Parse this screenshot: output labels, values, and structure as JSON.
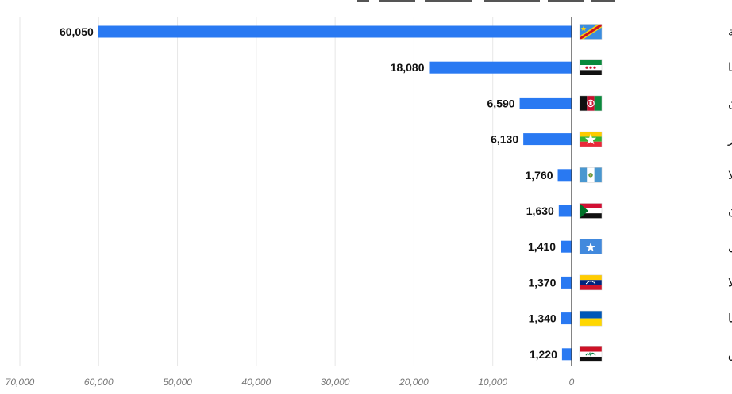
{
  "chart_data": {
    "type": "bar",
    "orientation": "horizontal",
    "title": "",
    "xlabel": "",
    "ylabel": "",
    "categories": [
      "الكونغو الديمقراطية",
      "سوريا",
      "أفغانستان",
      "ميانمار",
      "غواتيمالا",
      "السودان",
      "الصومال",
      "فنزويلا",
      "أوكرانيا",
      "العراق"
    ],
    "values": [
      60050,
      18080,
      6590,
      6130,
      1760,
      1630,
      1410,
      1370,
      1340,
      1220
    ],
    "value_labels": [
      "60,050",
      "18,080",
      "6,590",
      "6,130",
      "1,760",
      "1,630",
      "1,410",
      "1,370",
      "1,340",
      "1,220"
    ],
    "flags": [
      "drc-flag-icon",
      "syria-flag-icon",
      "afghanistan-flag-icon",
      "myanmar-flag-icon",
      "guatemala-flag-icon",
      "sudan-flag-icon",
      "somalia-flag-icon",
      "venezuela-flag-icon",
      "ukraine-flag-icon",
      "iraq-flag-icon"
    ],
    "xlim": [
      0,
      70000
    ],
    "x_direction": "right-to-left",
    "xticks": [
      70000,
      60000,
      50000,
      40000,
      30000,
      20000,
      10000,
      0
    ],
    "xtick_labels": [
      "70,000",
      "60,000",
      "50,000",
      "40,000",
      "30,000",
      "20,000",
      "10,000",
      "0"
    ],
    "grid": true,
    "bar_color": "#2979f2"
  }
}
